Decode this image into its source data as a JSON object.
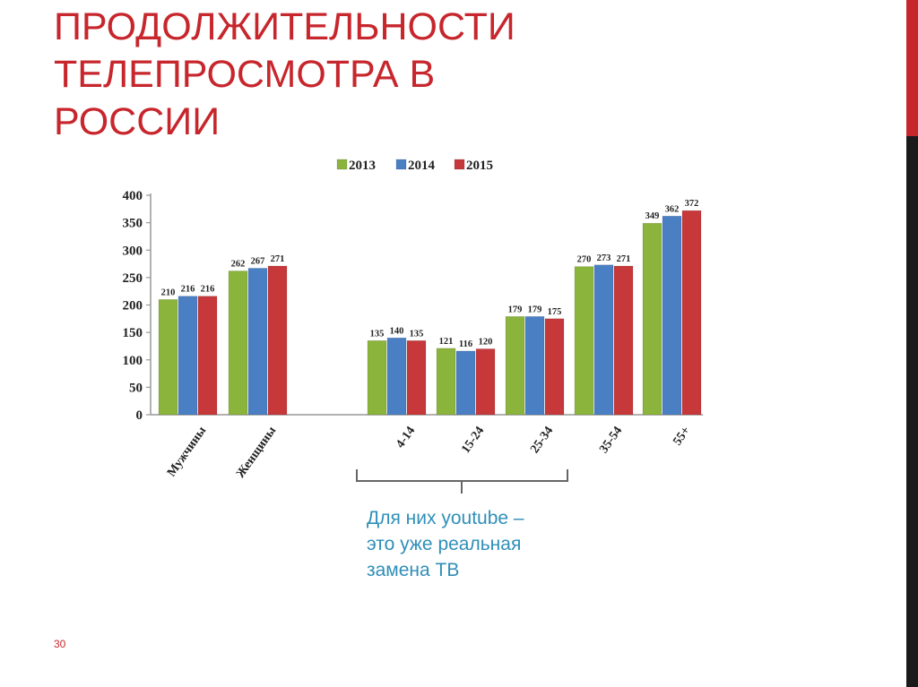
{
  "slide": {
    "title_lines": [
      "ПРОДОЛЖИТЕЛЬНОСТИ",
      "ТЕЛЕПРОСМОТРА В",
      "РОССИИ"
    ],
    "callout_lines": [
      "Для них youtube –",
      "это уже реальная",
      "замена ТВ"
    ],
    "page_number": "30"
  },
  "colors": {
    "title": "#c7262c",
    "callout": "#2f8fb8",
    "series_2013": "#8bb43c",
    "series_2014": "#4a7fc4",
    "series_2015": "#c6383a"
  },
  "chart_data": {
    "type": "bar",
    "title": "",
    "xlabel": "",
    "ylabel": "",
    "ylim": [
      0,
      400
    ],
    "yticks": [
      0,
      50,
      100,
      150,
      200,
      250,
      300,
      350,
      400
    ],
    "grid": false,
    "legend_position": "top",
    "categories": [
      "Мужчины",
      "Женщины",
      "",
      "4-14",
      "15-24",
      "25-34",
      "35-54",
      "55+"
    ],
    "series": [
      {
        "name": "2013",
        "color": "#8bb43c",
        "values": [
          210,
          262,
          null,
          135,
          121,
          179,
          270,
          349
        ]
      },
      {
        "name": "2014",
        "color": "#4a7fc4",
        "values": [
          216,
          267,
          null,
          140,
          116,
          179,
          273,
          362
        ]
      },
      {
        "name": "2015",
        "color": "#c6383a",
        "values": [
          216,
          271,
          null,
          135,
          120,
          175,
          271,
          372
        ]
      }
    ],
    "value_labels": [
      [
        "210",
        "216",
        "216"
      ],
      [
        "262",
        "267",
        "271"
      ],
      null,
      [
        "135",
        "140",
        "135"
      ],
      [
        "121",
        "116",
        "120"
      ],
      [
        "179",
        "179",
        "175"
      ],
      [
        "270",
        "273",
        "271"
      ],
      [
        "349",
        "362",
        "372"
      ]
    ]
  }
}
